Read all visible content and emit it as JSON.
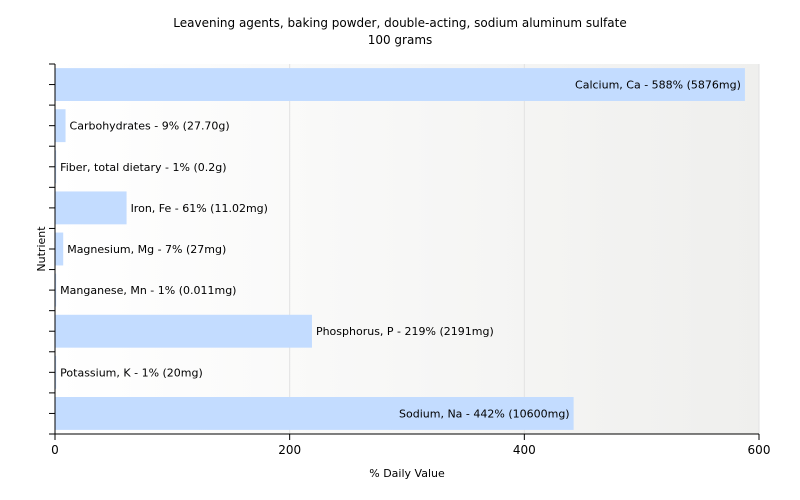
{
  "chart_data": {
    "type": "bar",
    "orientation": "horizontal",
    "title": "Leavening agents, baking powder, double-acting, sodium aluminum sulfate",
    "subtitle": "100 grams",
    "xlabel": "% Daily Value",
    "ylabel": "Nutrient",
    "xlim": [
      0,
      600
    ],
    "xticks": [
      0,
      200,
      400,
      600
    ],
    "grid": true,
    "colors": {
      "bar": "#c3dcff",
      "plot_background": "#f7f7f5",
      "axis": "#000000",
      "grid": "#e2e2e2"
    },
    "categories": [
      "Calcium, Ca",
      "Carbohydrates",
      "Fiber, total dietary",
      "Iron, Fe",
      "Magnesium, Mg",
      "Manganese, Mn",
      "Phosphorus, P",
      "Potassium, K",
      "Sodium, Na"
    ],
    "values": [
      588,
      9,
      1,
      61,
      7,
      1,
      219,
      1,
      442
    ],
    "labels": [
      "Calcium, Ca - 588% (5876mg)",
      "Carbohydrates - 9% (27.70g)",
      "Fiber, total dietary - 1% (0.2g)",
      "Iron, Fe - 61% (11.02mg)",
      "Magnesium, Mg - 7% (27mg)",
      "Manganese, Mn - 1% (0.011mg)",
      "Phosphorus, P - 219% (2191mg)",
      "Potassium, K - 1% (20mg)",
      "Sodium, Na - 442% (10600mg)"
    ]
  }
}
